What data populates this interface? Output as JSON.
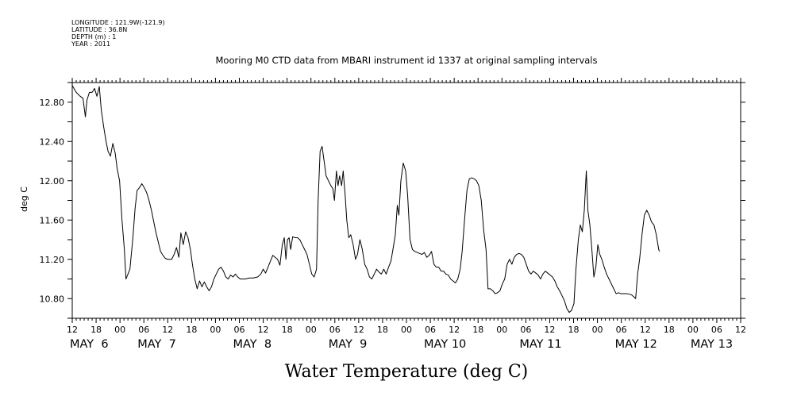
{
  "meta_lines": [
    "LONGITUDE : 121.9W(-121.9)",
    "LATITUDE : 36.8N",
    "DEPTH (m) : 1",
    "YEAR : 2011"
  ],
  "chart_data": {
    "type": "line",
    "title": "Mooring M0 CTD data from MBARI instrument id 1337 at original sampling intervals",
    "xlabel": "Water Temperature (deg C)",
    "ylabel": "deg C",
    "ylim": [
      10.6,
      13.0
    ],
    "xlim": [
      0,
      168
    ],
    "x_unit": "hours since MAY 6 12:00",
    "ytick_labels": [
      "12.80",
      "12.40",
      "12.00",
      "11.60",
      "11.20",
      "10.80"
    ],
    "ytick_values": [
      12.8,
      12.4,
      12.0,
      11.6,
      11.2,
      10.8
    ],
    "hour_tick_labels": [
      "12",
      "18",
      "00",
      "06",
      "12",
      "18",
      "00",
      "06",
      "12",
      "18",
      "00",
      "06",
      "12",
      "18",
      "00",
      "06",
      "12",
      "18",
      "00",
      "06",
      "12",
      "18",
      "00",
      "06",
      "12",
      "18",
      "00",
      "06",
      "12"
    ],
    "date_labels": [
      {
        "text": "MAY  6",
        "x": 0
      },
      {
        "text": "MAY  7",
        "x": 17
      },
      {
        "text": "MAY  8",
        "x": 41
      },
      {
        "text": "MAY  9",
        "x": 65
      },
      {
        "text": "MAY 10",
        "x": 89
      },
      {
        "text": "MAY 11",
        "x": 113
      },
      {
        "text": "MAY 12",
        "x": 137
      },
      {
        "text": "MAY 13",
        "x": 156
      }
    ],
    "series": [
      {
        "color": "#000000",
        "points": [
          [
            0,
            12.97
          ],
          [
            1,
            12.9
          ],
          [
            2,
            12.86
          ],
          [
            2.7,
            12.84
          ],
          [
            3.3,
            12.65
          ],
          [
            3.7,
            12.82
          ],
          [
            4.3,
            12.9
          ],
          [
            5,
            12.9
          ],
          [
            5.6,
            12.94
          ],
          [
            6.2,
            12.86
          ],
          [
            6.8,
            12.96
          ],
          [
            7.3,
            12.72
          ],
          [
            7.9,
            12.55
          ],
          [
            8.5,
            12.4
          ],
          [
            9,
            12.3
          ],
          [
            9.6,
            12.25
          ],
          [
            10.2,
            12.38
          ],
          [
            10.8,
            12.28
          ],
          [
            11.3,
            12.12
          ],
          [
            11.9,
            12.0
          ],
          [
            12.5,
            11.6
          ],
          [
            13.1,
            11.3
          ],
          [
            13.5,
            11.0
          ],
          [
            13.9,
            11.04
          ],
          [
            14.5,
            11.1
          ],
          [
            15.2,
            11.4
          ],
          [
            15.8,
            11.72
          ],
          [
            16.3,
            11.9
          ],
          [
            16.9,
            11.93
          ],
          [
            17.5,
            11.97
          ],
          [
            18.1,
            11.93
          ],
          [
            18.7,
            11.88
          ],
          [
            19.3,
            11.8
          ],
          [
            19.9,
            11.7
          ],
          [
            20.4,
            11.6
          ],
          [
            21,
            11.48
          ],
          [
            21.6,
            11.38
          ],
          [
            22.2,
            11.28
          ],
          [
            22.8,
            11.24
          ],
          [
            23.4,
            11.21
          ],
          [
            24,
            11.2
          ],
          [
            25,
            11.2
          ],
          [
            25.6,
            11.25
          ],
          [
            26.2,
            11.32
          ],
          [
            26.8,
            11.22
          ],
          [
            27.3,
            11.47
          ],
          [
            27.9,
            11.35
          ],
          [
            28.5,
            11.48
          ],
          [
            29.1,
            11.42
          ],
          [
            29.7,
            11.3
          ],
          [
            30.2,
            11.15
          ],
          [
            30.8,
            11.0
          ],
          [
            31.4,
            10.9
          ],
          [
            32,
            10.98
          ],
          [
            32.6,
            10.92
          ],
          [
            33.2,
            10.97
          ],
          [
            33.8,
            10.92
          ],
          [
            34.4,
            10.88
          ],
          [
            35,
            10.92
          ],
          [
            35.6,
            11.0
          ],
          [
            36.2,
            11.05
          ],
          [
            36.8,
            11.1
          ],
          [
            37.4,
            11.12
          ],
          [
            38,
            11.08
          ],
          [
            38.6,
            11.02
          ],
          [
            39.2,
            11.0
          ],
          [
            39.8,
            11.04
          ],
          [
            40.4,
            11.02
          ],
          [
            41,
            11.05
          ],
          [
            41.6,
            11.02
          ],
          [
            42.2,
            11.0
          ],
          [
            43.5,
            11.0
          ],
          [
            44.5,
            11.01
          ],
          [
            45.5,
            11.01
          ],
          [
            46.6,
            11.02
          ],
          [
            47.4,
            11.05
          ],
          [
            48,
            11.1
          ],
          [
            48.6,
            11.06
          ],
          [
            49.2,
            11.12
          ],
          [
            49.8,
            11.18
          ],
          [
            50.4,
            11.24
          ],
          [
            51,
            11.22
          ],
          [
            51.6,
            11.2
          ],
          [
            52.2,
            11.14
          ],
          [
            52.8,
            11.35
          ],
          [
            53.3,
            11.42
          ],
          [
            53.7,
            11.2
          ],
          [
            54.1,
            11.4
          ],
          [
            54.5,
            11.42
          ],
          [
            54.9,
            11.3
          ],
          [
            55.4,
            11.43
          ],
          [
            56,
            11.42
          ],
          [
            56.6,
            11.42
          ],
          [
            57.2,
            11.4
          ],
          [
            57.8,
            11.35
          ],
          [
            58.4,
            11.3
          ],
          [
            59,
            11.25
          ],
          [
            59.6,
            11.15
          ],
          [
            60.2,
            11.05
          ],
          [
            60.8,
            11.02
          ],
          [
            61.4,
            11.1
          ],
          [
            61.8,
            11.8
          ],
          [
            62.3,
            12.3
          ],
          [
            62.8,
            12.35
          ],
          [
            63.3,
            12.2
          ],
          [
            63.8,
            12.05
          ],
          [
            64.4,
            12.0
          ],
          [
            65,
            11.95
          ],
          [
            65.5,
            11.92
          ],
          [
            65.9,
            11.8
          ],
          [
            66.4,
            12.1
          ],
          [
            66.8,
            11.95
          ],
          [
            67.2,
            12.05
          ],
          [
            67.7,
            11.95
          ],
          [
            68.1,
            12.1
          ],
          [
            68.6,
            11.85
          ],
          [
            69,
            11.6
          ],
          [
            69.5,
            11.42
          ],
          [
            70,
            11.45
          ],
          [
            70.6,
            11.35
          ],
          [
            71.2,
            11.2
          ],
          [
            71.7,
            11.25
          ],
          [
            72.3,
            11.4
          ],
          [
            72.9,
            11.3
          ],
          [
            73.5,
            11.15
          ],
          [
            74.1,
            11.1
          ],
          [
            74.7,
            11.02
          ],
          [
            75.3,
            11.0
          ],
          [
            75.9,
            11.05
          ],
          [
            76.5,
            11.1
          ],
          [
            77.1,
            11.07
          ],
          [
            77.7,
            11.05
          ],
          [
            78.3,
            11.1
          ],
          [
            78.9,
            11.05
          ],
          [
            79.5,
            11.12
          ],
          [
            80.1,
            11.18
          ],
          [
            80.6,
            11.3
          ],
          [
            81.2,
            11.45
          ],
          [
            81.7,
            11.75
          ],
          [
            82.1,
            11.65
          ],
          [
            82.6,
            12.0
          ],
          [
            83.2,
            12.18
          ],
          [
            83.8,
            12.1
          ],
          [
            84.3,
            11.85
          ],
          [
            84.9,
            11.4
          ],
          [
            85.5,
            11.3
          ],
          [
            86.1,
            11.28
          ],
          [
            86.7,
            11.27
          ],
          [
            87.3,
            11.26
          ],
          [
            87.9,
            11.25
          ],
          [
            88.5,
            11.27
          ],
          [
            89.1,
            11.22
          ],
          [
            89.7,
            11.24
          ],
          [
            90.3,
            11.28
          ],
          [
            90.9,
            11.15
          ],
          [
            91.5,
            11.12
          ],
          [
            92.1,
            11.12
          ],
          [
            92.7,
            11.08
          ],
          [
            93.3,
            11.08
          ],
          [
            93.9,
            11.05
          ],
          [
            94.5,
            11.04
          ],
          [
            95.1,
            11.0
          ],
          [
            95.7,
            10.98
          ],
          [
            96.3,
            10.96
          ],
          [
            96.9,
            11.0
          ],
          [
            97.5,
            11.1
          ],
          [
            98,
            11.28
          ],
          [
            98.6,
            11.6
          ],
          [
            99.2,
            11.9
          ],
          [
            99.8,
            12.02
          ],
          [
            100.4,
            12.03
          ],
          [
            101,
            12.02
          ],
          [
            101.6,
            12.0
          ],
          [
            102.2,
            11.95
          ],
          [
            102.8,
            11.8
          ],
          [
            103.4,
            11.5
          ],
          [
            104,
            11.3
          ],
          [
            104.5,
            10.9
          ],
          [
            105.1,
            10.9
          ],
          [
            105.7,
            10.88
          ],
          [
            106.3,
            10.85
          ],
          [
            106.9,
            10.86
          ],
          [
            107.5,
            10.88
          ],
          [
            108.1,
            10.95
          ],
          [
            108.7,
            11.0
          ],
          [
            109.3,
            11.15
          ],
          [
            109.9,
            11.2
          ],
          [
            110.5,
            11.15
          ],
          [
            111.1,
            11.22
          ],
          [
            111.7,
            11.25
          ],
          [
            112.3,
            11.26
          ],
          [
            112.9,
            11.25
          ],
          [
            113.5,
            11.22
          ],
          [
            114.1,
            11.15
          ],
          [
            114.7,
            11.08
          ],
          [
            115.3,
            11.05
          ],
          [
            115.9,
            11.08
          ],
          [
            116.5,
            11.06
          ],
          [
            117.1,
            11.04
          ],
          [
            117.7,
            11.0
          ],
          [
            118.3,
            11.05
          ],
          [
            118.9,
            11.08
          ],
          [
            119.5,
            11.06
          ],
          [
            120.1,
            11.04
          ],
          [
            120.7,
            11.02
          ],
          [
            121.3,
            10.98
          ],
          [
            121.9,
            10.92
          ],
          [
            122.5,
            10.88
          ],
          [
            123.1,
            10.83
          ],
          [
            123.7,
            10.78
          ],
          [
            124.3,
            10.7
          ],
          [
            124.9,
            10.66
          ],
          [
            125.5,
            10.68
          ],
          [
            126.1,
            10.75
          ],
          [
            126.6,
            11.1
          ],
          [
            127.2,
            11.4
          ],
          [
            127.7,
            11.55
          ],
          [
            128.2,
            11.48
          ],
          [
            128.7,
            11.7
          ],
          [
            129.2,
            12.1
          ],
          [
            129.6,
            11.7
          ],
          [
            130.1,
            11.55
          ],
          [
            130.6,
            11.3
          ],
          [
            131.1,
            11.02
          ],
          [
            131.6,
            11.12
          ],
          [
            132.1,
            11.35
          ],
          [
            132.6,
            11.25
          ],
          [
            133.1,
            11.2
          ],
          [
            133.7,
            11.12
          ],
          [
            134.3,
            11.05
          ],
          [
            134.9,
            11.0
          ],
          [
            135.5,
            10.95
          ],
          [
            136.1,
            10.9
          ],
          [
            136.7,
            10.85
          ],
          [
            137.3,
            10.86
          ],
          [
            137.9,
            10.85
          ],
          [
            138.5,
            10.85
          ],
          [
            139.5,
            10.85
          ],
          [
            140.5,
            10.84
          ],
          [
            141.1,
            10.82
          ],
          [
            141.6,
            10.8
          ],
          [
            142.1,
            11.05
          ],
          [
            142.6,
            11.2
          ],
          [
            143.2,
            11.45
          ],
          [
            143.8,
            11.65
          ],
          [
            144.4,
            11.7
          ],
          [
            145,
            11.65
          ],
          [
            145.6,
            11.58
          ],
          [
            146.2,
            11.55
          ],
          [
            146.8,
            11.45
          ],
          [
            147.4,
            11.3
          ],
          [
            147.6,
            11.28
          ]
        ]
      }
    ]
  }
}
